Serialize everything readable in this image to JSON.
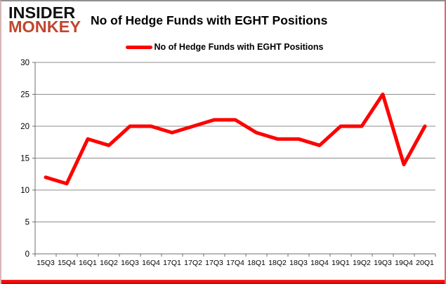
{
  "brand": {
    "line1": "INSIDER",
    "line2": "MONKEY"
  },
  "header": {
    "title": "No of Hedge Funds with EGHT Positions"
  },
  "legend": {
    "label": "No of Hedge Funds with EGHT Positions"
  },
  "colors": {
    "line": "#ff0000",
    "grid": "#8c8c8c",
    "axis": "#6f6f6f",
    "tick_text": "#000000",
    "brand_accent": "#c0462f",
    "bottom_bar": "#ff0000"
  },
  "chart_data": {
    "type": "line",
    "title": "No of Hedge Funds with EGHT Positions",
    "categories": [
      "15Q3",
      "15Q4",
      "16Q1",
      "16Q2",
      "16Q3",
      "16Q4",
      "17Q1",
      "17Q2",
      "17Q3",
      "17Q4",
      "18Q1",
      "18Q2",
      "18Q3",
      "18Q4",
      "19Q1",
      "19Q2",
      "19Q3",
      "19Q4",
      "20Q1"
    ],
    "series": [
      {
        "name": "No of Hedge Funds with EGHT Positions",
        "color": "#ff0000",
        "values": [
          12,
          11,
          18,
          17,
          20,
          20,
          19,
          20,
          21,
          21,
          19,
          18,
          18,
          17,
          20,
          20,
          25,
          14,
          20
        ]
      }
    ],
    "xlabel": "",
    "ylabel": "",
    "ylim": [
      0,
      30
    ],
    "yticks": [
      0,
      5,
      10,
      15,
      20,
      25,
      30
    ],
    "grid": true,
    "legend_position": "top"
  }
}
